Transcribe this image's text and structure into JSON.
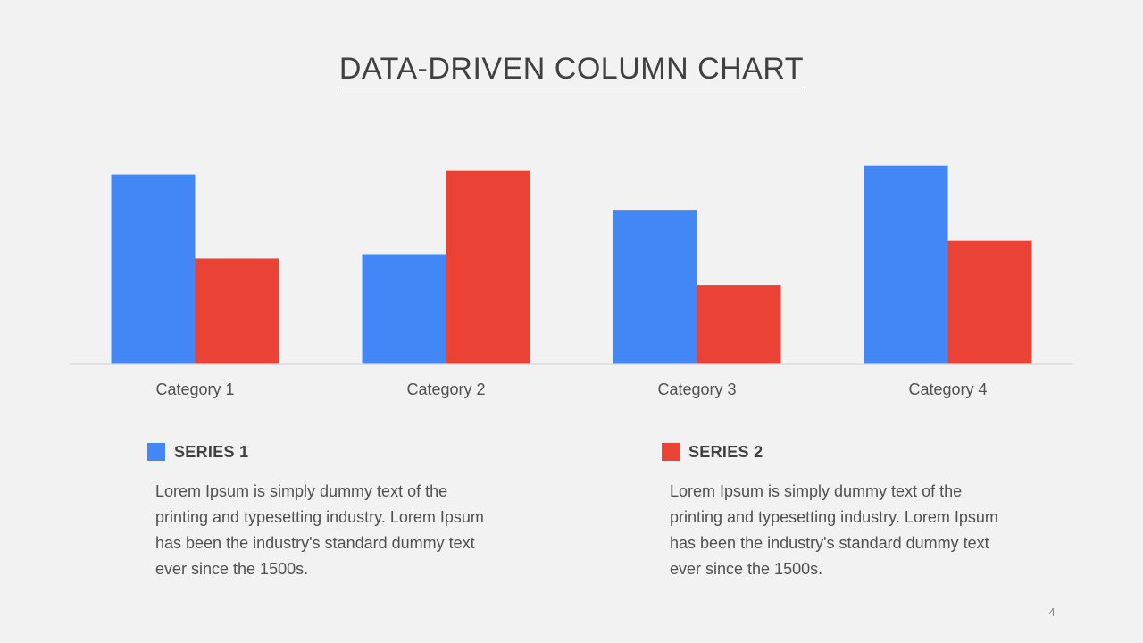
{
  "slide": {
    "title": "DATA-DRIVEN COLUMN CHART",
    "page_number": "4"
  },
  "chart_data": {
    "type": "bar",
    "categories": [
      "Category 1",
      "Category 2",
      "Category 3",
      "Category 4"
    ],
    "series": [
      {
        "name": "SERIES 1",
        "color": "#4287f5",
        "values": [
          4.3,
          2.5,
          3.5,
          4.5
        ]
      },
      {
        "name": "SERIES 2",
        "color": "#ea4335",
        "values": [
          2.4,
          4.4,
          1.8,
          2.8
        ]
      }
    ],
    "ylim": [
      0,
      5
    ],
    "grid": false,
    "legend": "bottom"
  },
  "legend": [
    {
      "label": "SERIES 1",
      "color": "#4287f5",
      "text": "Lorem Ipsum is simply dummy text of the printing and typesetting industry. Lorem Ipsum has been the industry's standard dummy text ever since the 1500s."
    },
    {
      "label": "SERIES 2",
      "color": "#ea4335",
      "text": "Lorem Ipsum is simply dummy text of the printing and typesetting industry. Lorem Ipsum has been the industry's standard dummy text ever since the 1500s."
    }
  ]
}
